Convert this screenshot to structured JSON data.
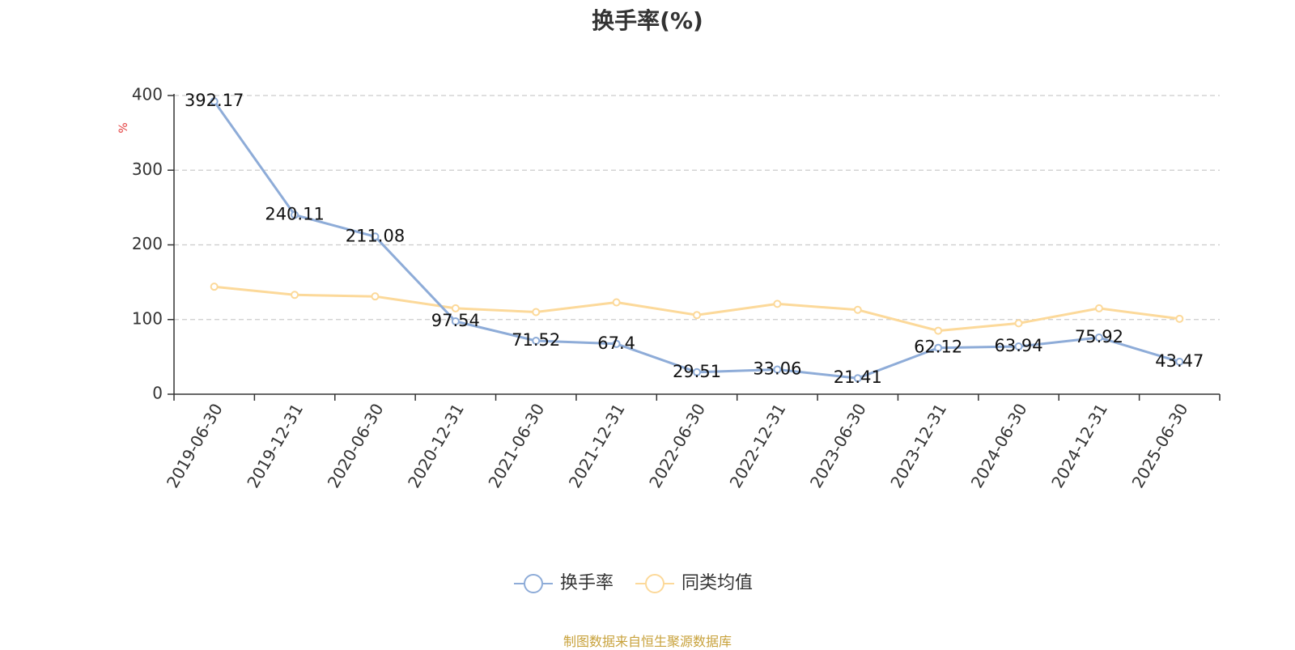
{
  "title": "换手率(%)",
  "source_note": "制图数据来自恒生聚源数据库",
  "chart_data": {
    "type": "line",
    "title": "换手率(%)",
    "ylabel": "%",
    "xlabel": "",
    "ylim": [
      0,
      400
    ],
    "yticks": [
      0,
      100,
      200,
      300,
      400
    ],
    "grid": true,
    "legend_position": "bottom-center",
    "categories": [
      "2019-06-30",
      "2019-12-31",
      "2020-06-30",
      "2020-12-31",
      "2021-06-30",
      "2021-12-31",
      "2022-06-30",
      "2022-12-31",
      "2023-06-30",
      "2023-12-31",
      "2024-06-30",
      "2024-12-31",
      "2025-06-30"
    ],
    "series": [
      {
        "name": "换手率",
        "color": "#8eacd8",
        "values": [
          392.17,
          240.11,
          211.08,
          97.54,
          71.52,
          67.4,
          29.51,
          33.06,
          21.41,
          62.12,
          63.94,
          75.92,
          43.47
        ],
        "labels": [
          "392.17",
          "240.11",
          "211.08",
          "97.54",
          "71.52",
          "67.4",
          "29.51",
          "33.06",
          "21.41",
          "62.12",
          "63.94",
          "75.92",
          "43.47"
        ]
      },
      {
        "name": "同类均值",
        "color": "#fcd99a",
        "values": [
          144,
          133,
          131,
          115,
          110,
          123,
          106,
          121,
          113,
          85,
          95,
          115,
          101
        ]
      }
    ]
  }
}
